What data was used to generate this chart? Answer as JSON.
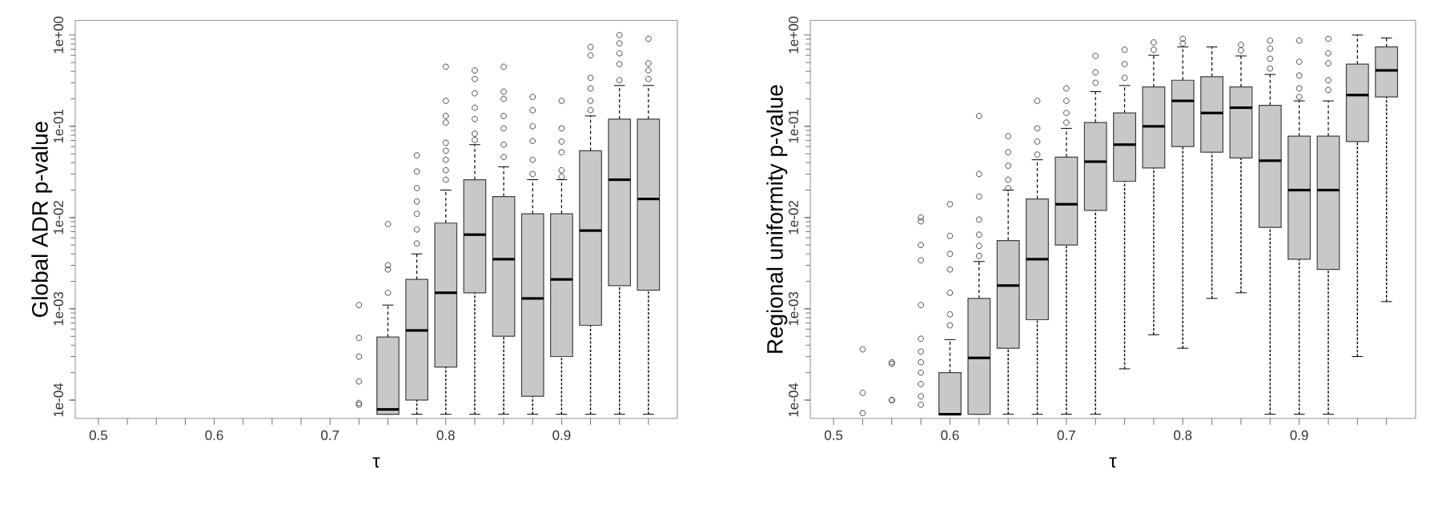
{
  "chart_data": [
    {
      "type": "box",
      "xlabel": "τ",
      "ylabel": "Global ADR p-value",
      "log": "y",
      "color": "#c8c8c8",
      "xlim": [
        0.48,
        1.0
      ],
      "ylim": [
        6.3e-05,
        1.45
      ],
      "xticks": [
        0.5,
        {
          "value": 0.525,
          "label": null
        },
        {
          "value": 0.55,
          "label": null
        },
        {
          "value": 0.575,
          "label": null
        },
        0.6,
        {
          "value": 0.625,
          "label": null
        },
        {
          "value": 0.65,
          "label": null
        },
        {
          "value": 0.675,
          "label": null
        },
        0.7,
        {
          "value": 0.725,
          "label": null
        },
        {
          "value": 0.75,
          "label": null
        },
        {
          "value": 0.775,
          "label": null
        },
        0.8,
        {
          "value": 0.825,
          "label": null
        },
        {
          "value": 0.85,
          "label": null
        },
        {
          "value": 0.875,
          "label": null
        },
        0.9,
        {
          "value": 0.925,
          "label": null
        },
        {
          "value": 0.95,
          "label": null
        },
        {
          "value": 0.975,
          "label": null
        }
      ],
      "yticks": [
        {
          "value": 0.0001,
          "label": "1e-04"
        },
        {
          "value": 0.001,
          "label": "1e-03"
        },
        {
          "value": 0.01,
          "label": "1e-02"
        },
        {
          "value": 0.1,
          "label": "1e-01"
        },
        {
          "value": 1,
          "label": "1e+00"
        }
      ],
      "x": [
        0.75,
        0.775,
        0.8,
        0.825,
        0.85,
        0.875,
        0.9,
        0.925,
        0.95,
        0.975
      ],
      "boxes": [
        {
          "low": 7e-05,
          "q1": 7e-05,
          "median": 7.9e-05,
          "q3": 0.00049,
          "high": 0.0011,
          "outliers": [
            0.0085,
            0.003,
            0.0027,
            0.0015
          ]
        },
        {
          "low": 7e-05,
          "q1": 0.0001,
          "median": 0.00058,
          "q3": 0.0021,
          "high": 0.004,
          "outliers": [
            0.0052,
            0.0074,
            0.011,
            0.015,
            0.021,
            0.032,
            0.048
          ]
        },
        {
          "low": 7e-05,
          "q1": 0.00023,
          "median": 0.0015,
          "q3": 0.0087,
          "high": 0.02,
          "outliers": [
            0.45,
            0.19,
            0.13,
            0.11,
            0.066,
            0.054,
            0.043,
            0.033,
            0.026
          ]
        },
        {
          "low": 7e-05,
          "q1": 0.0015,
          "median": 0.0065,
          "q3": 0.026,
          "high": 0.063,
          "outliers": [
            0.41,
            0.33,
            0.23,
            0.16,
            0.12,
            0.083,
            0.071
          ]
        },
        {
          "low": 7e-05,
          "q1": 0.0005,
          "median": 0.0035,
          "q3": 0.017,
          "high": 0.036,
          "outliers": [
            0.45,
            0.24,
            0.2,
            0.13,
            0.095,
            0.063,
            0.046
          ]
        },
        {
          "low": 7e-05,
          "q1": 0.00011,
          "median": 0.0013,
          "q3": 0.011,
          "high": 0.026,
          "outliers": [
            0.21,
            0.15,
            0.1,
            0.069,
            0.043,
            0.03
          ]
        },
        {
          "low": 7e-05,
          "q1": 0.0003,
          "median": 0.0021,
          "q3": 0.011,
          "high": 0.026,
          "outliers": [
            0.19,
            0.095,
            0.068,
            0.052,
            0.033,
            0.028
          ]
        },
        {
          "low": 7e-05,
          "q1": 0.00066,
          "median": 0.0072,
          "q3": 0.054,
          "high": 0.13,
          "outliers": [
            0.74,
            0.6,
            0.34,
            0.26,
            0.19,
            0.15
          ]
        },
        {
          "low": 7e-05,
          "q1": 0.0018,
          "median": 0.026,
          "q3": 0.12,
          "high": 0.28,
          "outliers": [
            1.0,
            0.81,
            0.63,
            0.48,
            0.32
          ]
        },
        {
          "low": 7e-05,
          "q1": 0.0016,
          "median": 0.016,
          "q3": 0.12,
          "high": 0.28,
          "outliers": [
            0.91,
            0.49,
            0.41,
            0.33
          ]
        }
      ],
      "series": [
        {
          "type": "scatter",
          "marker": "circle",
          "color": "#333333",
          "x": [
            0.725,
            0.725,
            0.725,
            0.725,
            0.725,
            0.725
          ],
          "values": [
            0.0011,
            0.00048,
            0.0003,
            0.00016,
            9.3e-05,
            8.9e-05
          ]
        }
      ]
    },
    {
      "type": "box",
      "xlabel": "τ",
      "ylabel": "Regional uniformity p-value",
      "log": "y",
      "color": "#c8c8c8",
      "xlim": [
        0.48,
        1.0
      ],
      "ylim": [
        6.3e-05,
        1.45
      ],
      "xticks": [
        0.5,
        {
          "value": 0.525,
          "label": null
        },
        {
          "value": 0.55,
          "label": null
        },
        {
          "value": 0.575,
          "label": null
        },
        0.6,
        {
          "value": 0.625,
          "label": null
        },
        {
          "value": 0.65,
          "label": null
        },
        {
          "value": 0.675,
          "label": null
        },
        0.7,
        {
          "value": 0.725,
          "label": null
        },
        {
          "value": 0.75,
          "label": null
        },
        {
          "value": 0.775,
          "label": null
        },
        0.8,
        {
          "value": 0.825,
          "label": null
        },
        {
          "value": 0.85,
          "label": null
        },
        {
          "value": 0.875,
          "label": null
        },
        0.9,
        {
          "value": 0.925,
          "label": null
        },
        {
          "value": 0.95,
          "label": null
        },
        {
          "value": 0.975,
          "label": null
        }
      ],
      "yticks": [
        {
          "value": 0.0001,
          "label": "1e-04"
        },
        {
          "value": 0.001,
          "label": "1e-03"
        },
        {
          "value": 0.01,
          "label": "1e-02"
        },
        {
          "value": 0.1,
          "label": "1e-01"
        },
        {
          "value": 1,
          "label": "1e+00"
        }
      ],
      "x": [
        0.6,
        0.625,
        0.65,
        0.675,
        0.7,
        0.725,
        0.75,
        0.775,
        0.8,
        0.825,
        0.85,
        0.875,
        0.9,
        0.925,
        0.95,
        0.975
      ],
      "boxes": [
        {
          "low": 7e-05,
          "q1": 7e-05,
          "median": 7e-05,
          "q3": 0.0002,
          "high": 0.00046,
          "outliers": [
            0.014,
            0.0063,
            0.004,
            0.0027,
            0.0015,
            0.00087,
            0.00066
          ]
        },
        {
          "low": 7e-05,
          "q1": 7e-05,
          "median": 0.00029,
          "q3": 0.0013,
          "high": 0.0033,
          "outliers": [
            0.13,
            0.03,
            0.017,
            0.0095,
            0.0065,
            0.0049,
            0.0038
          ]
        },
        {
          "low": 7e-05,
          "q1": 0.00037,
          "median": 0.0018,
          "q3": 0.0056,
          "high": 0.02,
          "outliers": [
            0.078,
            0.052,
            0.037,
            0.026,
            0.021
          ]
        },
        {
          "low": 7e-05,
          "q1": 0.00076,
          "median": 0.0035,
          "q3": 0.016,
          "high": 0.043,
          "outliers": [
            0.19,
            0.095,
            0.068,
            0.049
          ]
        },
        {
          "low": 7e-05,
          "q1": 0.005,
          "median": 0.014,
          "q3": 0.046,
          "high": 0.095,
          "outliers": [
            0.26,
            0.19,
            0.14,
            0.11
          ]
        },
        {
          "low": 7e-05,
          "q1": 0.012,
          "median": 0.041,
          "q3": 0.11,
          "high": 0.24,
          "outliers": [
            0.59,
            0.39,
            0.3
          ]
        },
        {
          "low": 0.00022,
          "q1": 0.025,
          "median": 0.063,
          "q3": 0.14,
          "high": 0.28,
          "outliers": [
            0.69,
            0.48,
            0.34
          ]
        },
        {
          "low": 0.00052,
          "q1": 0.035,
          "median": 0.1,
          "q3": 0.27,
          "high": 0.6,
          "outliers": [
            0.83,
            0.69
          ]
        },
        {
          "low": 0.00037,
          "q1": 0.06,
          "median": 0.19,
          "q3": 0.32,
          "high": 0.74,
          "outliers": [
            0.91,
            0.81
          ]
        },
        {
          "low": 0.0013,
          "q1": 0.052,
          "median": 0.14,
          "q3": 0.35,
          "high": 0.74
        },
        {
          "low": 0.0015,
          "q1": 0.045,
          "median": 0.16,
          "q3": 0.27,
          "high": 0.59,
          "outliers": [
            0.78,
            0.68
          ]
        },
        {
          "low": 7e-05,
          "q1": 0.0078,
          "median": 0.042,
          "q3": 0.17,
          "high": 0.37,
          "outliers": [
            0.87,
            0.71,
            0.55,
            0.43
          ]
        },
        {
          "low": 7e-05,
          "q1": 0.0035,
          "median": 0.02,
          "q3": 0.078,
          "high": 0.19,
          "outliers": [
            0.87,
            0.51,
            0.36,
            0.26,
            0.21
          ]
        },
        {
          "low": 7e-05,
          "q1": 0.0027,
          "median": 0.02,
          "q3": 0.078,
          "high": 0.19,
          "outliers": [
            0.91,
            0.63,
            0.49,
            0.32,
            0.25
          ]
        },
        {
          "low": 0.0003,
          "q1": 0.068,
          "median": 0.22,
          "q3": 0.48,
          "high": 1.0
        },
        {
          "low": 0.0012,
          "q1": 0.21,
          "median": 0.41,
          "q3": 0.74,
          "high": 0.93
        }
      ],
      "series": [
        {
          "type": "scatter",
          "marker": "circle",
          "color": "#333333",
          "x": [
            0.525,
            0.525,
            0.525,
            0.55,
            0.55,
            0.55,
            0.55,
            0.575,
            0.575,
            0.575,
            0.575,
            0.575,
            0.575,
            0.575,
            0.575,
            0.575,
            0.575,
            0.575,
            0.575
          ],
          "values": [
            0.00036,
            0.00012,
            7.2e-05,
            0.00026,
            0.00025,
            0.0001,
            0.0001,
            0.01,
            0.0091,
            0.005,
            0.0034,
            0.0011,
            0.00047,
            0.00034,
            0.00026,
            0.0002,
            0.00015,
            0.00011,
            8.9e-05
          ]
        }
      ]
    }
  ]
}
